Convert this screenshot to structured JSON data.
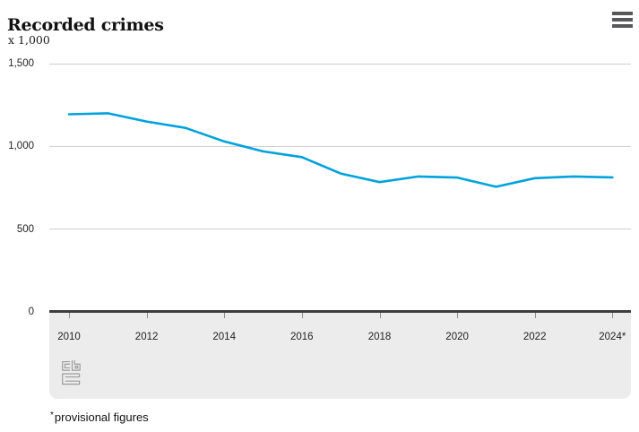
{
  "header": {
    "title": "Recorded crimes",
    "menu_icon": "hamburger-menu"
  },
  "chart_data": {
    "type": "line",
    "title": "Recorded crimes",
    "unit_label": "x 1,000",
    "grid": true,
    "legend": "none",
    "line_color": "#00a2dd",
    "xlim": [
      2010,
      2024
    ],
    "ylim": [
      0,
      1500
    ],
    "series": [
      {
        "name": "Recorded crimes",
        "x": [
          2010,
          2011,
          2012,
          2013,
          2014,
          2015,
          2016,
          2017,
          2018,
          2019,
          2020,
          2021,
          2022,
          2023,
          2024
        ],
        "values": [
          1194,
          1200,
          1150,
          1112,
          1030,
          970,
          935,
          836,
          784,
          818,
          812,
          756,
          808,
          818,
          813
        ]
      }
    ],
    "y_ticks": {
      "values": [
        0,
        500,
        1000,
        1500
      ],
      "labels": [
        "0",
        "500",
        "1,000",
        "1,500"
      ]
    },
    "x_ticks": {
      "values": [
        2010,
        2012,
        2014,
        2016,
        2018,
        2020,
        2022,
        2024
      ],
      "labels": [
        "2010",
        "2012",
        "2014",
        "2016",
        "2018",
        "2020",
        "2022",
        "2024*"
      ]
    },
    "note": "2024 figures are provisional"
  },
  "footnote": {
    "marker": "*",
    "text": "provisional figures"
  },
  "branding": {
    "logo": "cbs-logo"
  }
}
